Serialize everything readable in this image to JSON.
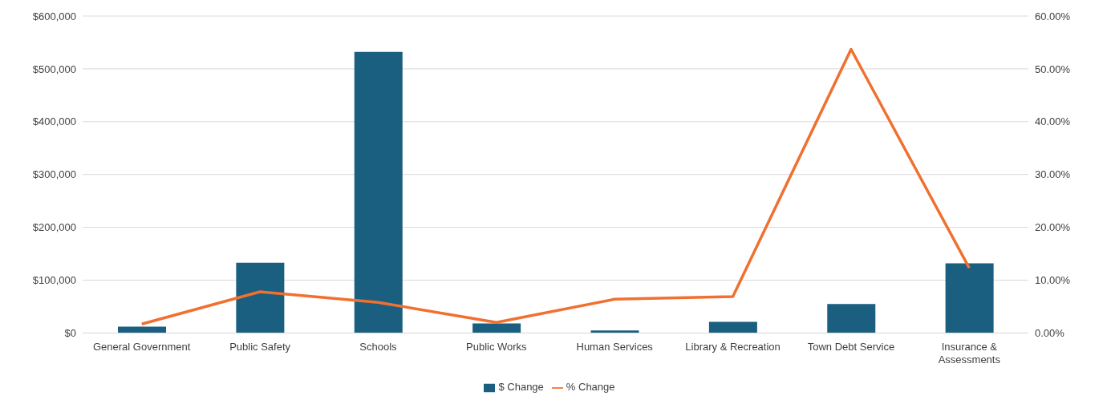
{
  "chart_data": {
    "type": "bar",
    "categories": [
      "General Government",
      "Public Safety",
      "Schools",
      "Public Works",
      "Human Services",
      "Library & Recreation",
      "Town Debt Service",
      "Insurance & Assessments"
    ],
    "series": [
      {
        "name": "$ Change",
        "color": "#1a5e80",
        "values": [
          12000,
          133000,
          532000,
          18000,
          5000,
          21000,
          55000,
          132000
        ]
      },
      {
        "name": "% Change",
        "type": "line",
        "axis": "y2",
        "color": "#f07030",
        "values": [
          1.7,
          7.8,
          5.8,
          2.0,
          6.4,
          6.9,
          53.7,
          12.3
        ]
      }
    ],
    "ylim": [
      0,
      600000
    ],
    "yticks": [
      {
        "value": 0,
        "label": "$0"
      },
      {
        "value": 100000,
        "label": "$100,000"
      },
      {
        "value": 200000,
        "label": "$200,000"
      },
      {
        "value": 300000,
        "label": "$300,000"
      },
      {
        "value": 400000,
        "label": "$400,000"
      },
      {
        "value": 500000,
        "label": "$500,000"
      },
      {
        "value": 600000,
        "label": "$600,000"
      }
    ],
    "y2lim": [
      0,
      60
    ],
    "y2ticks": [
      {
        "value": 0,
        "label": "0.00%"
      },
      {
        "value": 10,
        "label": "10.00%"
      },
      {
        "value": 20,
        "label": "20.00%"
      },
      {
        "value": 30,
        "label": "30.00%"
      },
      {
        "value": 40,
        "label": "40.00%"
      },
      {
        "value": 50,
        "label": "50.00%"
      },
      {
        "value": 60,
        "label": "60.00%"
      }
    ],
    "grid": "y",
    "legend": "bottom",
    "marker": "none"
  }
}
